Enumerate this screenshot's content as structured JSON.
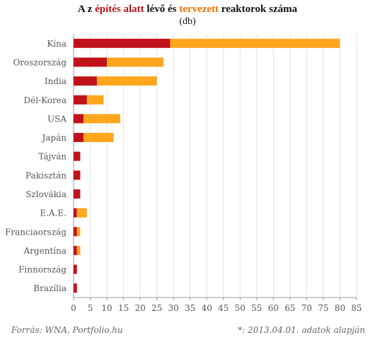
{
  "title": {
    "part1": "A z ",
    "part2": "építés alatt",
    "part3": " lévő és ",
    "part4": "tervezett",
    "part5": " reaktorok száma"
  },
  "subtitle": "(db)",
  "footer": {
    "source": "Forrás: WNA, Portfolio.hu",
    "note": "*: 2013.04.01. adatok alapján"
  },
  "colors": {
    "under_construction": "#c0121a",
    "planned": "#ffa61f",
    "grid": "#e3e3e3",
    "axis": "#999999",
    "label": "#555555"
  },
  "chart_data": {
    "type": "bar",
    "orientation": "horizontal",
    "stacked": true,
    "categories": [
      "Kína",
      "Oroszország",
      "India",
      "Dél-Korea",
      "USA",
      "Japán",
      "Tájván",
      "Pakisztán",
      "Szlovákia",
      "E.A.E.",
      "Franciaország",
      "Argentína",
      "Finnország",
      "Brazília"
    ],
    "series": [
      {
        "key": "under_construction",
        "values": [
          29,
          10,
          7,
          4,
          3,
          3,
          2,
          2,
          2,
          1,
          1,
          1,
          1,
          1
        ]
      },
      {
        "key": "planned",
        "values": [
          51,
          17,
          18,
          5,
          11,
          9,
          0,
          0,
          0,
          3,
          1,
          1,
          0,
          0
        ]
      }
    ],
    "xlim": [
      0,
      85
    ],
    "xticks": [
      0,
      5,
      10,
      15,
      20,
      25,
      30,
      35,
      40,
      45,
      50,
      55,
      60,
      65,
      70,
      75,
      80,
      85
    ],
    "grid": true
  }
}
